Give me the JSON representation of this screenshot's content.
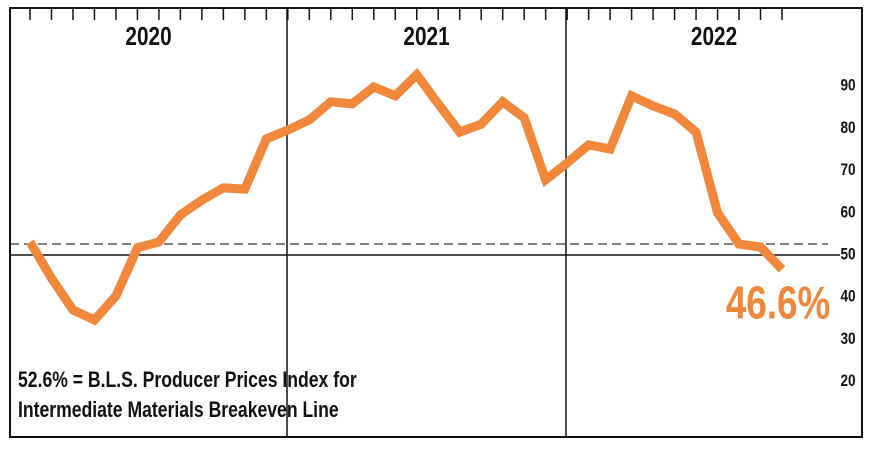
{
  "chart_data": {
    "type": "line",
    "periods": [
      "2020",
      "2021",
      "2022"
    ],
    "categories": [
      null,
      null,
      null,
      null,
      null,
      null,
      null,
      null,
      null,
      null,
      null,
      null,
      null,
      null,
      null,
      null,
      null,
      null,
      null,
      null,
      null,
      null,
      null,
      null,
      null,
      null,
      null,
      null,
      null,
      null,
      null,
      null,
      null,
      null,
      null,
      null
    ],
    "series": [
      {
        "color": "#f0873a",
        "values": [
          53.1,
          44.5,
          37.0,
          34.6,
          40.3,
          51.7,
          53.1,
          59.5,
          63.0,
          65.9,
          65.6,
          77.5,
          79.6,
          82.0,
          86.3,
          85.8,
          89.8,
          87.7,
          92.7,
          85.8,
          79.1,
          81.0,
          86.3,
          82.5,
          67.8,
          71.8,
          76.1,
          75.1,
          87.7,
          85.3,
          83.4,
          79.1,
          60.0,
          52.6,
          51.9,
          46.6
        ],
        "value_labels": [
          null,
          null,
          null,
          null,
          null,
          null,
          null,
          null,
          null,
          null,
          null,
          null,
          null,
          null,
          null,
          null,
          null,
          null,
          null,
          null,
          null,
          null,
          null,
          null,
          null,
          null,
          null,
          null,
          null,
          null,
          null,
          null,
          null,
          null,
          null,
          "46.6%"
        ]
      }
    ],
    "ylim": [
      6.9,
      108.5
    ],
    "yticks": [
      20,
      30,
      40,
      50,
      60,
      70,
      80,
      90
    ],
    "baseline": 50,
    "breakeven": 52.6,
    "note": [
      "52.6% = B.L.S. Producer Prices Index for",
      "Intermediate Materials Breakeven Line"
    ]
  }
}
